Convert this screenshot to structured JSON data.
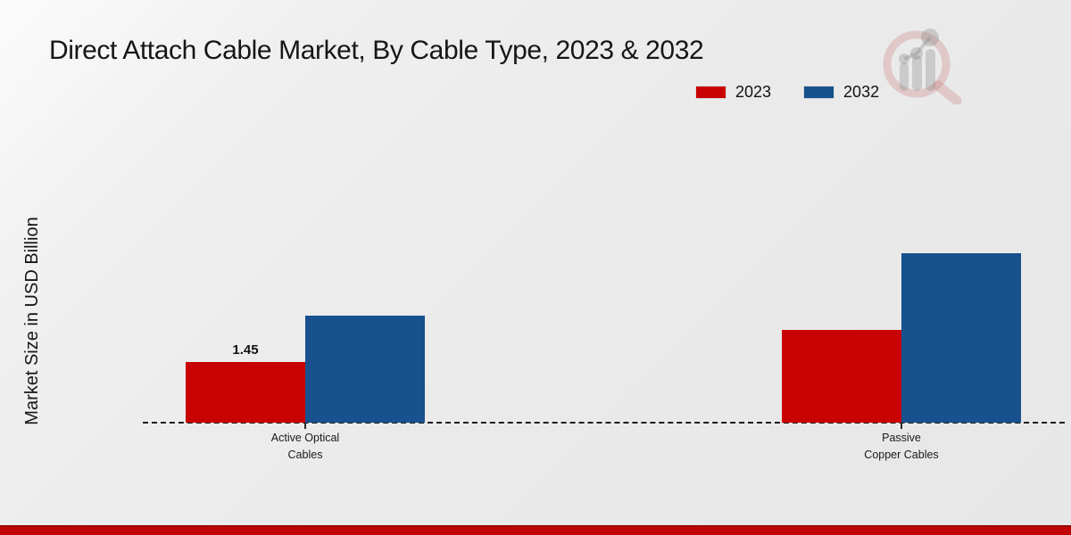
{
  "chart_data": {
    "type": "bar",
    "title": "Direct Attach Cable Market, By Cable Type, 2023 & 2032",
    "ylabel": "Market Size in USD Billion",
    "xlabel": "",
    "categories": [
      "Active Optical Cables",
      "Passive Copper Cables"
    ],
    "series": [
      {
        "name": "2023",
        "color": "#c90303",
        "values": [
          1.45,
          2.21
        ]
      },
      {
        "name": "2032",
        "color": "#17518e",
        "values": [
          2.55,
          4.05
        ]
      }
    ],
    "data_labels": [
      {
        "series": "2023",
        "category": "Active Optical Cables",
        "text": "1.45"
      }
    ],
    "ylim": [
      0,
      4.5
    ],
    "grid": false,
    "baseline_style": "dashed",
    "legend_position": "top-right",
    "value_note": "only the 2023 Active Optical Cables bar has a printed value; other bar values estimated from pixel heights"
  },
  "branding": {
    "watermark_icon": "magnifier-bar-chart-logo",
    "bottom_accent_color": "#c10404"
  }
}
